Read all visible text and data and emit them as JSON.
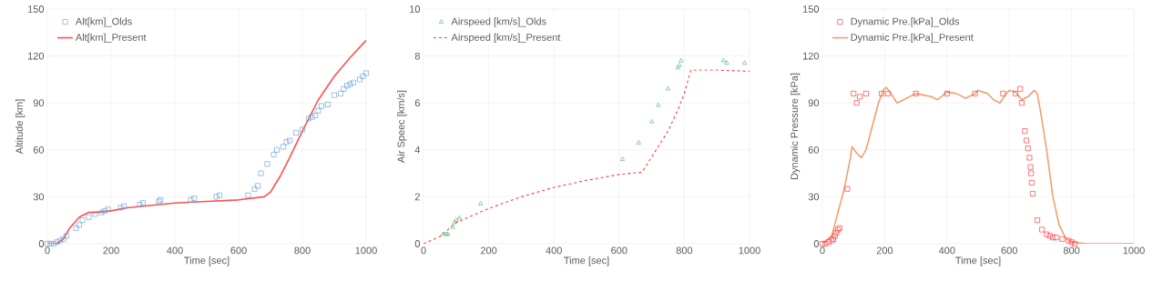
{
  "chart_data": [
    {
      "type": "line",
      "xlabel": "Time [sec]",
      "ylabel": "Altitude [km]",
      "xlim": [
        0,
        1000
      ],
      "ylim": [
        0,
        150
      ],
      "xticks": [
        0,
        200,
        400,
        600,
        800,
        1000
      ],
      "yticks": [
        0,
        30,
        60,
        90,
        120,
        150
      ],
      "grid": true,
      "legend": "top left",
      "series": [
        {
          "name": "Alt[km]_Olds",
          "type": "scatter",
          "marker": "square",
          "color": "#5b9bd5",
          "x": [
            0,
            10,
            20,
            30,
            40,
            50,
            60,
            90,
            100,
            110,
            130,
            150,
            170,
            180,
            190,
            230,
            240,
            290,
            300,
            350,
            355,
            450,
            460,
            530,
            540,
            630,
            650,
            660,
            670,
            690,
            710,
            720,
            740,
            750,
            760,
            780,
            800,
            820,
            830,
            840,
            850,
            860,
            880,
            900,
            920,
            930,
            940,
            950,
            960,
            980,
            990,
            1000
          ],
          "values": [
            0,
            0,
            0,
            1,
            2,
            3,
            5,
            10,
            12,
            15,
            17,
            19,
            20,
            21,
            22,
            23,
            24,
            25,
            26,
            27,
            28,
            28,
            29,
            30,
            31,
            31,
            35,
            37,
            45,
            51,
            57,
            60,
            62,
            65,
            66,
            71,
            73,
            80,
            81,
            82,
            85,
            88,
            89,
            95,
            96,
            99,
            101,
            102,
            103,
            105,
            107,
            109
          ]
        },
        {
          "name": "Alt[km]_Present",
          "type": "line",
          "line_style": "solid",
          "color": "#ff5050",
          "x": [
            0,
            30,
            50,
            70,
            100,
            130,
            150,
            200,
            250,
            300,
            400,
            500,
            600,
            680,
            700,
            730,
            760,
            800,
            850,
            900,
            950,
            1000
          ],
          "values": [
            0,
            0,
            3,
            10,
            17,
            20,
            20,
            21,
            23,
            24,
            26,
            27,
            28,
            30,
            33,
            43,
            55,
            72,
            92,
            107,
            119,
            130
          ]
        }
      ]
    },
    {
      "type": "line",
      "xlabel": "Time [sec]",
      "ylabel": "Air Speec [km/s]",
      "xlim": [
        0,
        1000
      ],
      "ylim": [
        0,
        10
      ],
      "xticks": [
        0,
        200,
        400,
        600,
        800,
        1000
      ],
      "yticks": [
        0,
        2,
        4,
        6,
        8,
        10
      ],
      "grid": true,
      "legend": "top left",
      "series": [
        {
          "name": "Airspeed [km/s]_Olds",
          "type": "scatter",
          "marker": "triangle",
          "color": "#3cb371",
          "x": [
            60,
            70,
            75,
            90,
            95,
            100,
            110,
            175,
            610,
            660,
            700,
            720,
            750,
            780,
            785,
            790,
            920,
            930,
            985
          ],
          "values": [
            0.4,
            0.4,
            0.4,
            0.7,
            0.9,
            1.0,
            1.1,
            1.7,
            3.6,
            4.3,
            5.2,
            5.9,
            6.6,
            7.5,
            7.6,
            7.8,
            7.8,
            7.7,
            7.7
          ]
        },
        {
          "name": "Airspeed [km/s]_Present",
          "type": "line",
          "line_style": "dashed",
          "color": "#ff4040",
          "x": [
            0,
            50,
            100,
            200,
            300,
            400,
            500,
            600,
            670,
            700,
            750,
            780,
            800,
            820,
            900,
            1000
          ],
          "values": [
            0,
            0.3,
            0.9,
            1.5,
            2.0,
            2.4,
            2.7,
            2.95,
            3.05,
            3.7,
            4.8,
            5.7,
            6.4,
            7.4,
            7.4,
            7.35
          ]
        }
      ]
    },
    {
      "type": "line",
      "xlabel": "Time [sec]",
      "ylabel": "Dynamic Pressure [kPa]",
      "xlim": [
        0,
        1000
      ],
      "ylim": [
        0,
        150
      ],
      "xticks": [
        0,
        200,
        400,
        600,
        800,
        1000
      ],
      "yticks": [
        0,
        30,
        60,
        90,
        120,
        150
      ],
      "grid": true,
      "legend": "top left",
      "series": [
        {
          "name": "Dynamic Pre.[kPa]_Olds",
          "type": "scatter",
          "marker": "square",
          "color": "#ff2020",
          "x": [
            0,
            10,
            20,
            30,
            35,
            40,
            45,
            50,
            55,
            80,
            100,
            110,
            120,
            140,
            190,
            210,
            300,
            400,
            490,
            580,
            620,
            635,
            640,
            650,
            655,
            660,
            665,
            668,
            670,
            672,
            675,
            690,
            705,
            720,
            730,
            740,
            750,
            770,
            790,
            800,
            810
          ],
          "values": [
            0,
            0,
            1,
            2,
            3,
            5,
            7,
            9,
            10,
            35,
            96,
            90,
            94,
            96,
            96,
            96,
            96,
            96,
            96,
            96,
            96,
            99,
            90,
            72,
            66,
            61,
            55,
            49,
            45,
            39,
            32,
            15,
            9,
            6,
            5,
            4,
            4,
            3,
            2,
            1,
            0
          ]
        },
        {
          "name": "Dynamic Pre.[kPa]_Present",
          "type": "line",
          "line_style": "solid",
          "color": "#f0a070",
          "x": [
            0,
            30,
            50,
            70,
            90,
            95,
            110,
            125,
            140,
            160,
            180,
            195,
            205,
            220,
            240,
            260,
            300,
            350,
            370,
            400,
            430,
            460,
            490,
            500,
            530,
            550,
            570,
            590,
            600,
            620,
            640,
            660,
            680,
            690,
            700,
            720,
            740,
            760,
            780,
            800,
            850,
            1000
          ],
          "values": [
            0,
            5,
            20,
            35,
            55,
            62,
            58,
            55,
            60,
            75,
            90,
            98,
            100,
            96,
            90,
            92,
            96,
            94,
            92,
            97,
            96,
            93,
            96,
            98,
            96,
            92,
            90,
            96,
            98,
            97,
            92,
            94,
            98,
            96,
            85,
            60,
            30,
            12,
            4,
            1,
            0,
            0
          ]
        }
      ]
    }
  ]
}
